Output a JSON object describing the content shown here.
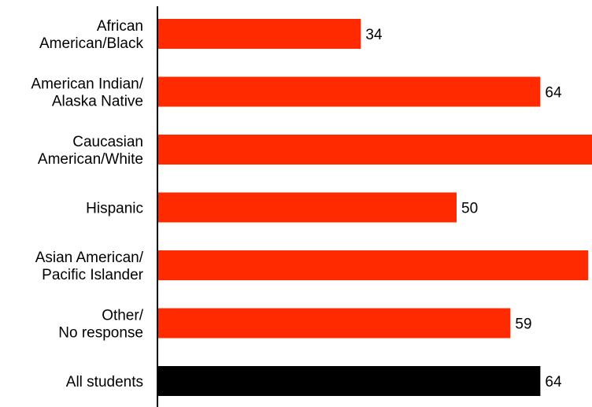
{
  "chart_data": {
    "type": "bar",
    "orientation": "horizontal",
    "categories": [
      [
        "African",
        "American/Black"
      ],
      [
        "American Indian/",
        "Alaska Native"
      ],
      [
        "Caucasian",
        "American/White"
      ],
      [
        "Hispanic"
      ],
      [
        "Asian American/",
        "Pacific Islander"
      ],
      [
        "Other/",
        "No response"
      ],
      [
        "All students"
      ]
    ],
    "values": [
      34,
      64,
      73,
      50,
      72,
      59,
      64
    ],
    "colors": [
      "#ff2a00",
      "#ff2a00",
      "#ff2a00",
      "#ff2a00",
      "#ff2a00",
      "#ff2a00",
      "#000000"
    ],
    "xlim": [
      0,
      100
    ],
    "title": "",
    "xlabel": "",
    "ylabel": "",
    "grid": false,
    "legend": "none"
  }
}
